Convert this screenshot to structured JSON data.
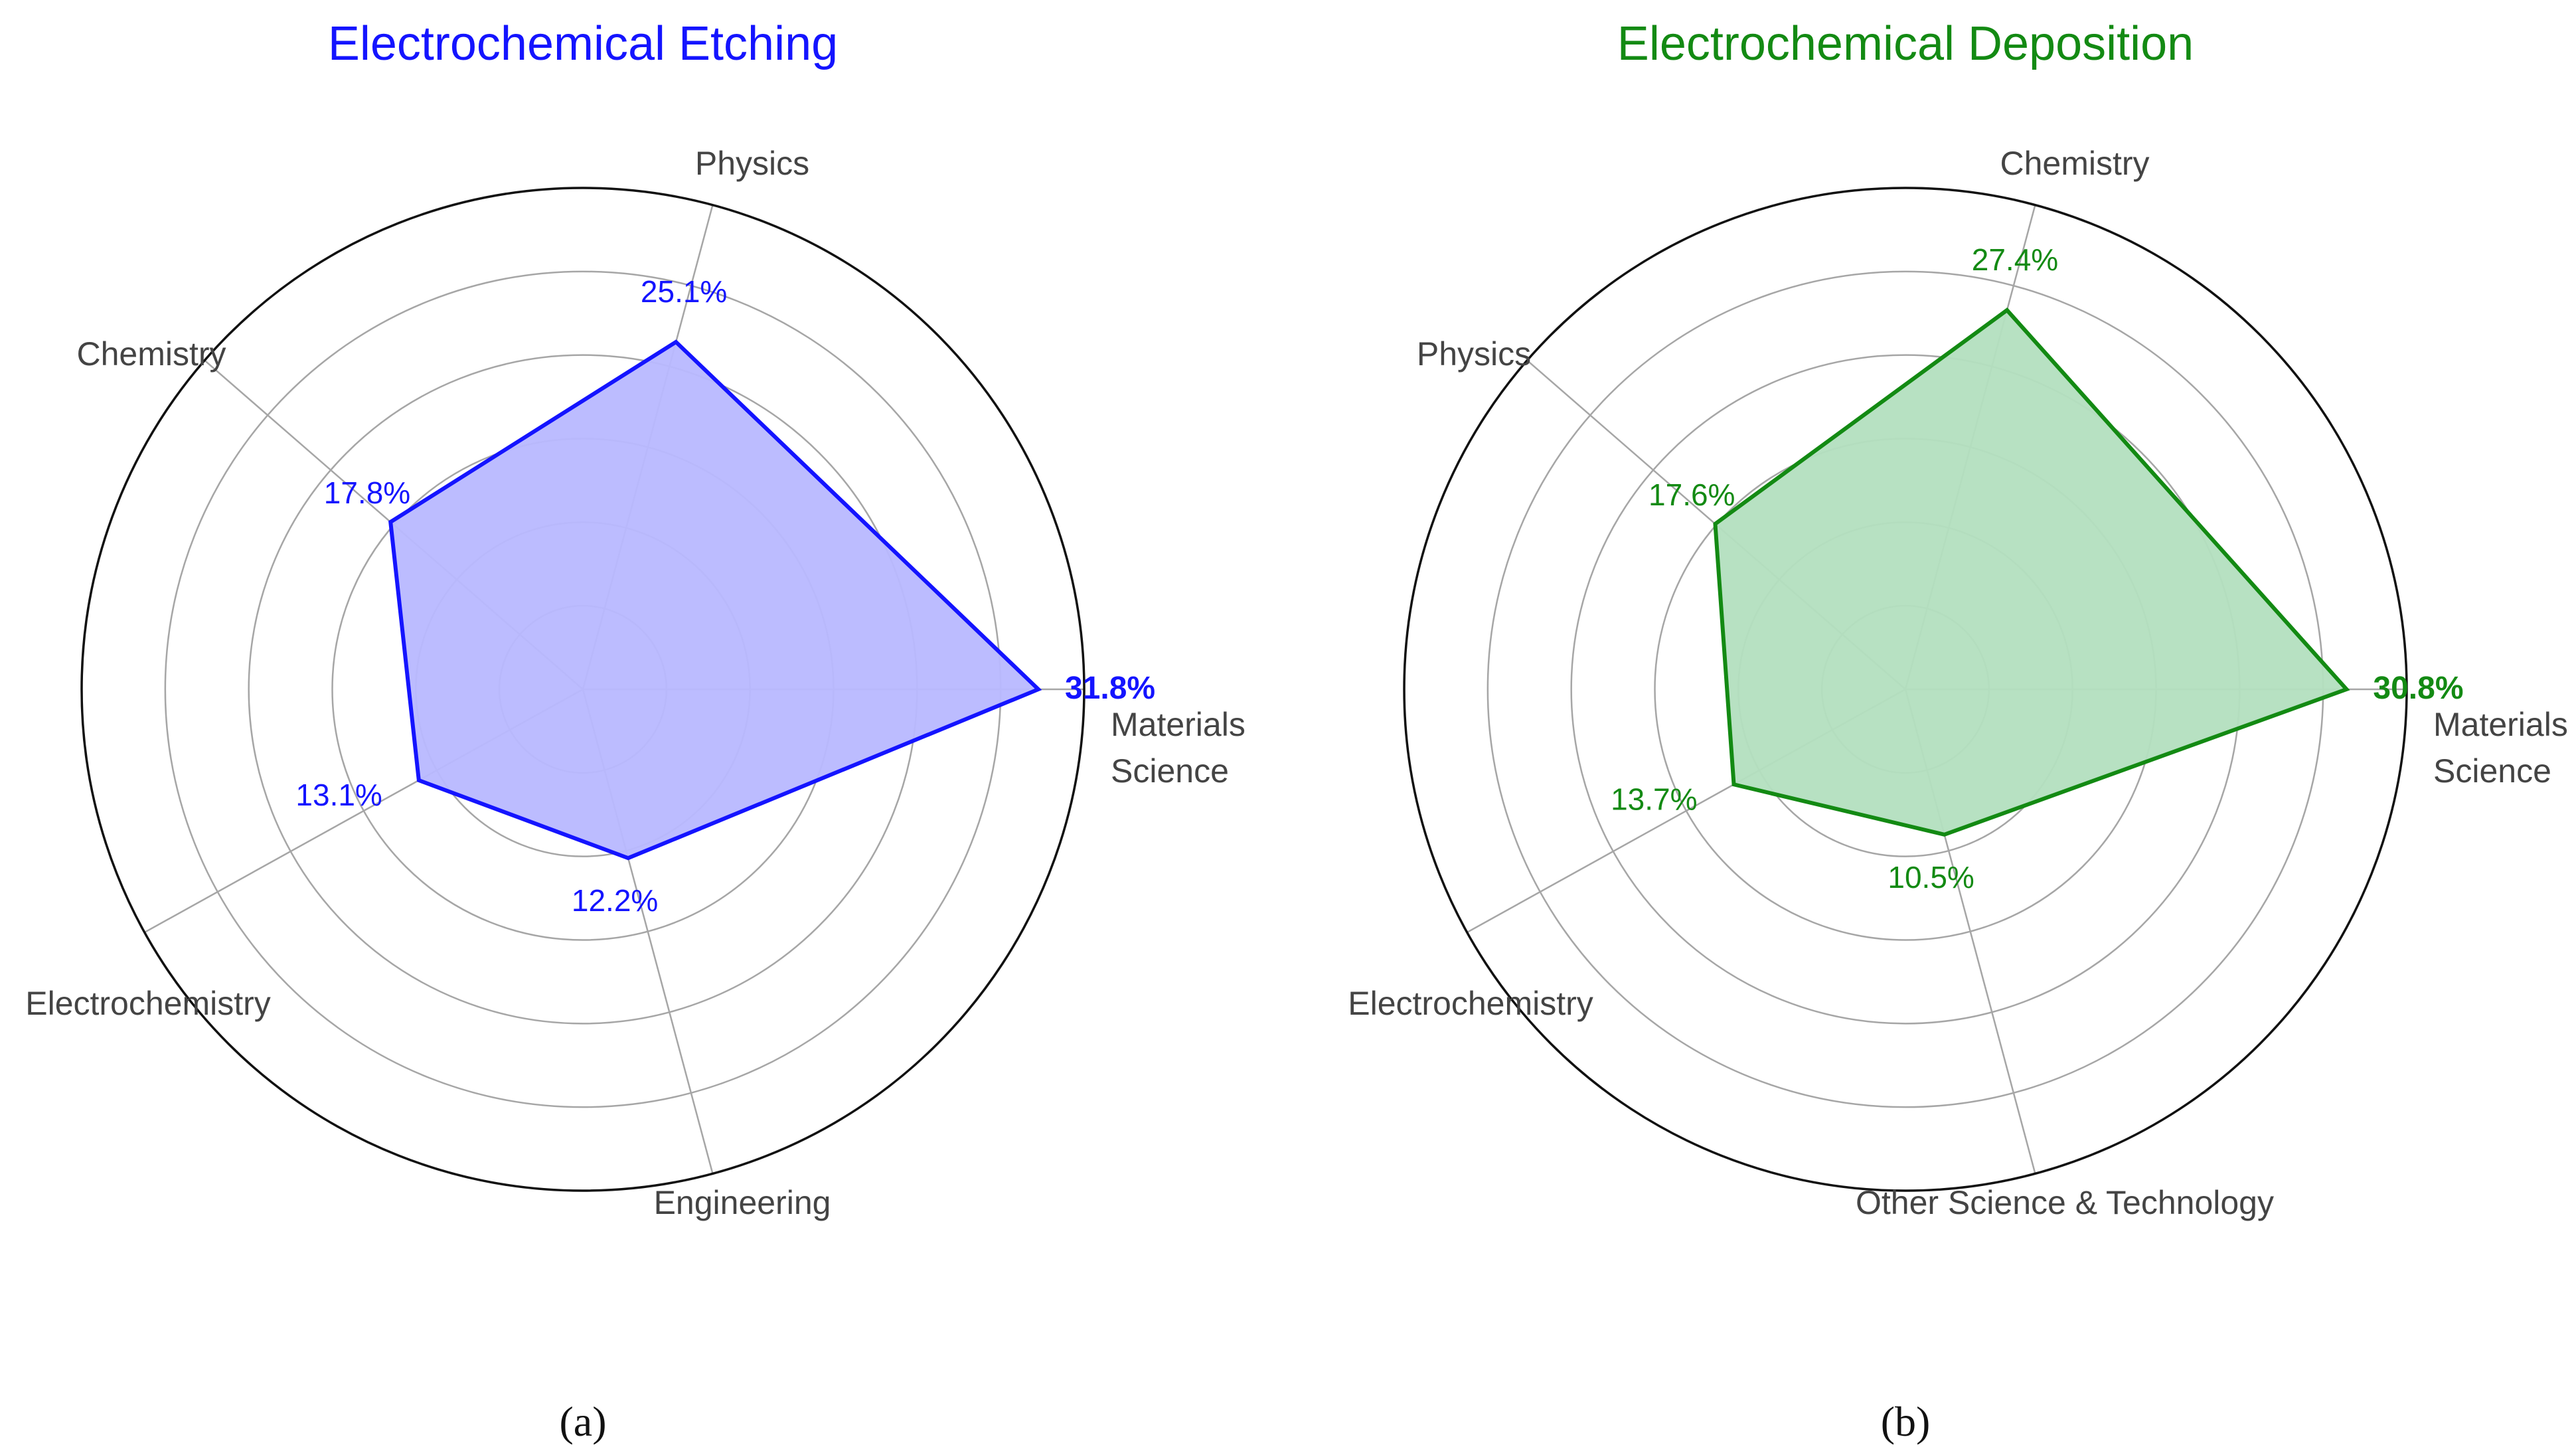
{
  "chart_data": [
    {
      "type": "radar",
      "title": "Electrochemical Etching",
      "sublabel": "(a)",
      "color": "#1414ff",
      "fill": "#b8b8ff",
      "rlim": [
        0,
        35
      ],
      "rings": 6,
      "grid": true,
      "categories": [
        {
          "name": "Materials Science",
          "lines": [
            "Materials",
            "Science"
          ],
          "angle_deg": 0,
          "value": 31.8,
          "label": "31.8%",
          "bold": true
        },
        {
          "name": "Physics",
          "lines": [
            "Physics"
          ],
          "angle_deg": 75,
          "value": 25.1,
          "label": "25.1%",
          "bold": false
        },
        {
          "name": "Chemistry",
          "lines": [
            "Chemistry"
          ],
          "angle_deg": 139,
          "value": 17.8,
          "label": "17.8%",
          "bold": false
        },
        {
          "name": "Electrochemistry",
          "lines": [
            "Electrochemistry"
          ],
          "angle_deg": 209,
          "value": 13.1,
          "label": "13.1%",
          "bold": false
        },
        {
          "name": "Engineering",
          "lines": [
            "Engineering"
          ],
          "angle_deg": 285,
          "value": 12.2,
          "label": "12.2%",
          "bold": false
        }
      ]
    },
    {
      "type": "radar",
      "title": "Electrochemical Deposition",
      "sublabel": "(b)",
      "color": "#138a13",
      "fill": "#b3dfbf",
      "rlim": [
        0,
        35
      ],
      "rings": 6,
      "grid": true,
      "categories": [
        {
          "name": "Materials Science",
          "lines": [
            "Materials",
            "Science"
          ],
          "angle_deg": 0,
          "value": 30.8,
          "label": "30.8%",
          "bold": true
        },
        {
          "name": "Chemistry",
          "lines": [
            "Chemistry"
          ],
          "angle_deg": 75,
          "value": 27.4,
          "label": "27.4%",
          "bold": false
        },
        {
          "name": "Physics",
          "lines": [
            "Physics"
          ],
          "angle_deg": 139,
          "value": 17.6,
          "label": "17.6%",
          "bold": false
        },
        {
          "name": "Electrochemistry",
          "lines": [
            "Electrochemistry"
          ],
          "angle_deg": 209,
          "value": 13.7,
          "label": "13.7%",
          "bold": false
        },
        {
          "name": "Other Science & Technology",
          "lines": [
            "Other Science & Technology"
          ],
          "angle_deg": 285,
          "value": 10.5,
          "label": "10.5%",
          "bold": false
        }
      ]
    }
  ]
}
